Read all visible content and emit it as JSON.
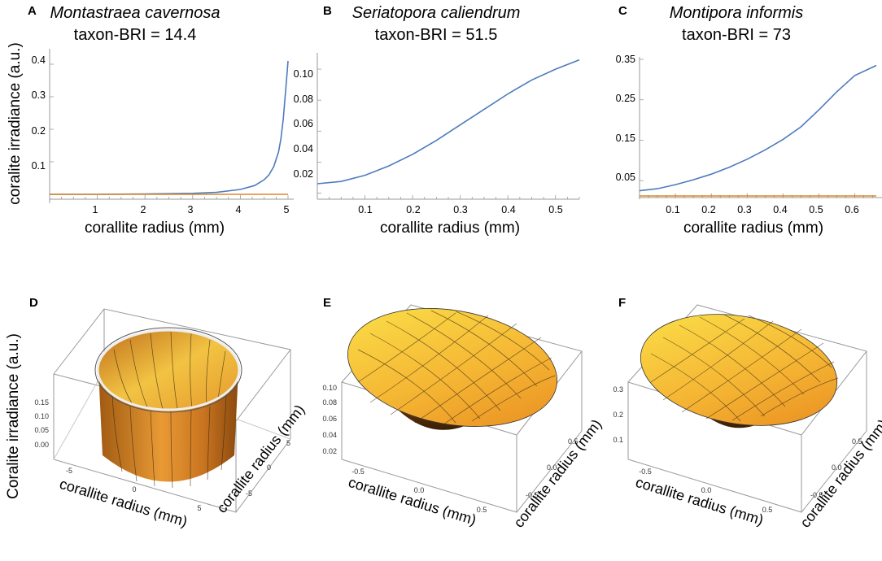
{
  "figure": {
    "y_axis_title_top": "coralite irradiance (a.u.)",
    "y_axis_title_bottom": "Coralite irradiance (a.u.)"
  },
  "chart_data": [
    {
      "panel": "A",
      "type": "line",
      "species": "Montastraea cavernosa",
      "bri_label": "taxon-BRI = 14.4",
      "xlabel": "corallite radius (mm)",
      "ylabel": "coralite irradiance (a.u.)",
      "xlim": [
        0,
        5
      ],
      "ylim": [
        -0.015,
        0.43
      ],
      "xticks": [
        "1",
        "2",
        "3",
        "4",
        "5"
      ],
      "xtick_values": [
        1,
        2,
        3,
        4,
        5
      ],
      "yticks": [
        "0.1",
        "0.2",
        "0.3",
        "0.4"
      ],
      "ytick_values": [
        0.1,
        0.2,
        0.3,
        0.4
      ],
      "series": [
        {
          "name": "irradiance",
          "color": "#4e7bbd",
          "x": [
            0,
            1,
            2,
            3,
            3.5,
            4,
            4.3,
            4.5,
            4.6,
            4.7,
            4.8,
            4.85,
            4.9,
            4.95,
            5.0
          ],
          "y": [
            0,
            0,
            0.001,
            0.003,
            0.006,
            0.015,
            0.027,
            0.045,
            0.06,
            0.085,
            0.13,
            0.17,
            0.23,
            0.32,
            0.41
          ]
        },
        {
          "name": "baseline",
          "color": "#d98a2b",
          "x": [
            0,
            5
          ],
          "y": [
            0,
            0
          ]
        }
      ]
    },
    {
      "panel": "B",
      "type": "line",
      "species": "Seriatopora caliendrum",
      "bri_label": "taxon-BRI = 51.5",
      "xlabel": "corallite radius (mm)",
      "ylabel": "",
      "xlim": [
        0,
        0.55
      ],
      "ylim": [
        0.015,
        0.11
      ],
      "xticks": [
        "0.1",
        "0.2",
        "0.3",
        "0.4",
        "0.5"
      ],
      "xtick_values": [
        0.1,
        0.2,
        0.3,
        0.4,
        0.5
      ],
      "yticks": [
        "0.02",
        "0.04",
        "0.06",
        "0.08",
        "0.10"
      ],
      "ytick_values": [
        0.02,
        0.04,
        0.06,
        0.08,
        0.1
      ],
      "series": [
        {
          "name": "irradiance",
          "color": "#4e7bbd",
          "x": [
            0,
            0.05,
            0.1,
            0.15,
            0.2,
            0.25,
            0.3,
            0.35,
            0.4,
            0.45,
            0.5,
            0.55
          ],
          "y": [
            0.026,
            0.0275,
            0.0315,
            0.0375,
            0.045,
            0.054,
            0.064,
            0.074,
            0.084,
            0.093,
            0.1,
            0.106
          ]
        }
      ]
    },
    {
      "panel": "C",
      "type": "line",
      "species": "Montipora informis",
      "bri_label": "taxon-BRI = 73",
      "xlabel": "corallite radius (mm)",
      "ylabel": "",
      "xlim": [
        0,
        0.66
      ],
      "ylim": [
        0.0,
        0.35
      ],
      "xticks": [
        "0.1",
        "0.2",
        "0.3",
        "0.4",
        "0.5",
        "0.6"
      ],
      "xtick_values": [
        0.1,
        0.2,
        0.3,
        0.4,
        0.5,
        0.6
      ],
      "yticks": [
        "0.05",
        "0.15",
        "0.25",
        "0.35"
      ],
      "ytick_values": [
        0.05,
        0.15,
        0.25,
        0.35
      ],
      "series": [
        {
          "name": "irradiance",
          "color": "#4e7bbd",
          "x": [
            0,
            0.05,
            0.1,
            0.15,
            0.2,
            0.25,
            0.3,
            0.35,
            0.4,
            0.45,
            0.5,
            0.55,
            0.6,
            0.66
          ],
          "y": [
            0.025,
            0.03,
            0.04,
            0.052,
            0.066,
            0.083,
            0.103,
            0.126,
            0.152,
            0.183,
            0.225,
            0.27,
            0.31,
            0.335
          ]
        },
        {
          "name": "baseline",
          "color": "#d98a2b",
          "x": [
            0,
            0.66
          ],
          "y": [
            0.012,
            0.012
          ]
        }
      ]
    },
    {
      "panel": "D",
      "type": "surface3d",
      "shape": "deep-cup",
      "x_axis_label": "corallite radius (mm)",
      "y_axis_label": "corallite radius (mm)",
      "z_axis_label": "Coralite irradiance (a.u.)",
      "zticks": [
        "0.00",
        "0.05",
        "0.10",
        "0.15"
      ],
      "xticks": [
        "-5",
        "0",
        "5"
      ],
      "yticks": [
        "-5",
        "0",
        "5"
      ]
    },
    {
      "panel": "E",
      "type": "surface3d",
      "shape": "shallow-bowl",
      "x_axis_label": "corallite radius (mm)",
      "y_axis_label": "corallite radius (mm)",
      "zticks": [
        "0.02",
        "0.04",
        "0.06",
        "0.08",
        "0.10"
      ],
      "xticks": [
        "-0.5",
        "0.0",
        "0.5"
      ],
      "yticks": [
        "-0.5",
        "0.0",
        "0.5"
      ]
    },
    {
      "panel": "F",
      "type": "surface3d",
      "shape": "shallow-bowl",
      "x_axis_label": "corallite radius (mm)",
      "y_axis_label": "corallite radius (mm)",
      "zticks": [
        "0.1",
        "0.2",
        "0.3"
      ],
      "xticks": [
        "-0.5",
        "0.0",
        "0.5"
      ],
      "yticks": [
        "-0.5",
        "0.0",
        "0.5"
      ]
    }
  ]
}
